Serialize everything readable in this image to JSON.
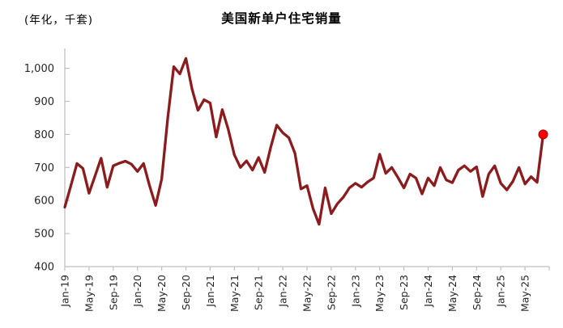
{
  "header": {
    "unit_label": "(年化，千套)",
    "title": "美国新单户住宅销量"
  },
  "chart_data": {
    "type": "line",
    "title": "美国新单户住宅销量",
    "ylabel": "(年化，千套)",
    "series_name": "美国新单户住宅销量",
    "values": [
      580,
      645,
      712,
      697,
      622,
      675,
      728,
      640,
      705,
      713,
      719,
      710,
      688,
      712,
      645,
      585,
      665,
      850,
      1005,
      983,
      1030,
      938,
      873,
      905,
      895,
      792,
      875,
      815,
      738,
      700,
      720,
      692,
      730,
      685,
      760,
      828,
      805,
      790,
      743,
      635,
      645,
      575,
      528,
      638,
      560,
      590,
      610,
      638,
      652,
      640,
      656,
      668,
      740,
      682,
      700,
      670,
      638,
      680,
      668,
      620,
      668,
      645,
      700,
      662,
      654,
      692,
      705,
      688,
      702,
      612,
      680,
      705,
      652,
      632,
      658,
      700,
      650,
      672,
      655,
      800
    ],
    "x_tick_labels": [
      "Jan-19",
      "May-19",
      "Sep-19",
      "Jan-20",
      "May-20",
      "Sep-20",
      "Jan-21",
      "May-21",
      "Sep-21",
      "Jan-22",
      "May-22",
      "Sep-22",
      "Jan-23",
      "May-23",
      "Sep-23",
      "Jan-24",
      "May-24",
      "Sep-24",
      "Jan-25",
      "May-25"
    ],
    "x_tick_interval_points": 4,
    "y_ticks": [
      400,
      500,
      600,
      700,
      800,
      900,
      1000
    ],
    "y_tick_labels": [
      "400",
      "500",
      "600",
      "700",
      "800",
      "900",
      "1,000"
    ],
    "ylim": [
      400,
      1060
    ],
    "grid": false,
    "legend": "none",
    "last_point_value": 800,
    "colors": {
      "line": "#8B1B1D",
      "marker_fill": "#FA0000",
      "marker_stroke": "#A50000",
      "axis": "#BFBFBF",
      "tick_text": "#262626"
    }
  }
}
